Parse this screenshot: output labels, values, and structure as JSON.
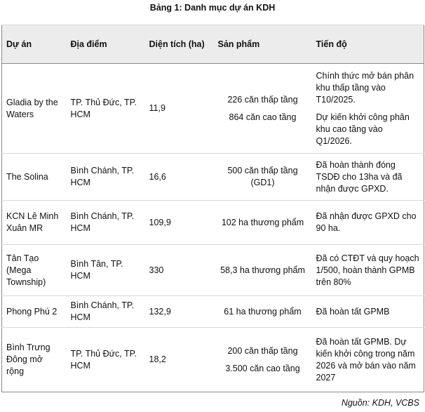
{
  "title": "Bảng 1: Danh mục dự án KDH",
  "table": {
    "header": [
      "Dự án",
      "Địa điểm",
      "Diện tích (ha)",
      "Sản phẩm",
      "Tiến độ"
    ],
    "rows": [
      [
        [
          "Gladia by the Waters"
        ],
        [
          "TP. Thủ Đức, TP. HCM"
        ],
        [
          "11,9"
        ],
        [
          "226 căn thấp tầng",
          "864 căn cao tầng"
        ],
        [
          "Chính thức mở bán phân khu thấp tầng vào T10/2025.",
          "Dự kiến khởi công phân khu cao tầng vào Q1/2026."
        ]
      ],
      [
        [
          "The Solina"
        ],
        [
          "Bình Chánh, TP. HCM"
        ],
        [
          "16,6"
        ],
        [
          "500 căn thấp tầng (GD1)"
        ],
        [
          "Đã hoàn thành đóng TSDĐ cho 13ha và đã nhận được GPXD."
        ]
      ],
      [
        [
          "KCN Lê Minh Xuân MR"
        ],
        [
          "Bình Chánh, TP. HCM"
        ],
        [
          "109,9"
        ],
        [
          "102 ha thương phẩm"
        ],
        [
          "Đã nhận được GPXD cho 90 ha."
        ]
      ],
      [
        [
          "Tân Tạo (Mega Township)"
        ],
        [
          "Bình Tân, TP. HCM"
        ],
        [
          "330"
        ],
        [
          "58,3 ha thương phẩm"
        ],
        [
          "Đã có CTĐT và quy hoạch 1/500, hoàn thành GPMB trên 80%"
        ]
      ],
      [
        [
          "Phong Phú 2"
        ],
        [
          "Bình Chánh, TP. HCM"
        ],
        [
          "132,9"
        ],
        [
          "61 ha thương phẩm"
        ],
        [
          "Đã hoàn tất GPMB"
        ]
      ],
      [
        [
          "Bình Trưng Đông mở rộng"
        ],
        [
          "TP. Thủ Đức, TP. HCM"
        ],
        [
          "18,2"
        ],
        [
          "200 căn thấp tầng",
          "3.500 căn cao tầng"
        ],
        [
          "Đã hoàn tất GPMB. Dự kiến khởi công trong năm 2026 và mở bán vào năm 2027"
        ]
      ]
    ]
  },
  "source": "Nguồn: KDH, VCBS"
}
